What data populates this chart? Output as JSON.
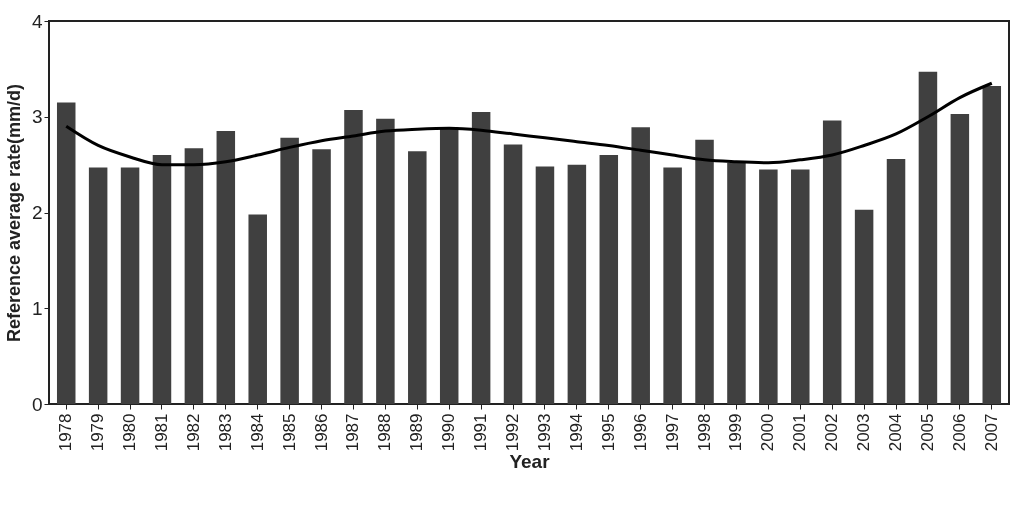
{
  "chart_data": {
    "type": "bar",
    "xlabel": "Year",
    "ylabel": "Reference average rate(mm/d)",
    "categories": [
      "1978",
      "1979",
      "1980",
      "1981",
      "1982",
      "1983",
      "1984",
      "1985",
      "1986",
      "1987",
      "1988",
      "1989",
      "1990",
      "1991",
      "1992",
      "1993",
      "1994",
      "1995",
      "1996",
      "1997",
      "1998",
      "1999",
      "2000",
      "2001",
      "2002",
      "2003",
      "2004",
      "2005",
      "2006",
      "2007"
    ],
    "series": [
      {
        "color": "#404040",
        "values": [
          3.15,
          2.47,
          2.47,
          2.6,
          2.67,
          2.85,
          1.98,
          2.78,
          2.66,
          3.07,
          2.98,
          2.64,
          2.89,
          3.05,
          2.71,
          2.48,
          2.5,
          2.6,
          2.89,
          2.47,
          2.76,
          2.52,
          2.45,
          2.45,
          2.96,
          2.03,
          2.56,
          3.47,
          3.03,
          3.32
        ]
      },
      {
        "type": "line",
        "color": "#000000",
        "values": [
          2.9,
          2.7,
          2.58,
          2.5,
          2.5,
          2.53,
          2.6,
          2.68,
          2.75,
          2.8,
          2.85,
          2.87,
          2.88,
          2.86,
          2.82,
          2.78,
          2.74,
          2.7,
          2.65,
          2.6,
          2.55,
          2.53,
          2.52,
          2.55,
          2.6,
          2.7,
          2.82,
          3.0,
          3.2,
          3.35
        ]
      }
    ],
    "ylim": [
      0,
      4
    ],
    "yticks": [
      0,
      1,
      2,
      3,
      4
    ]
  }
}
